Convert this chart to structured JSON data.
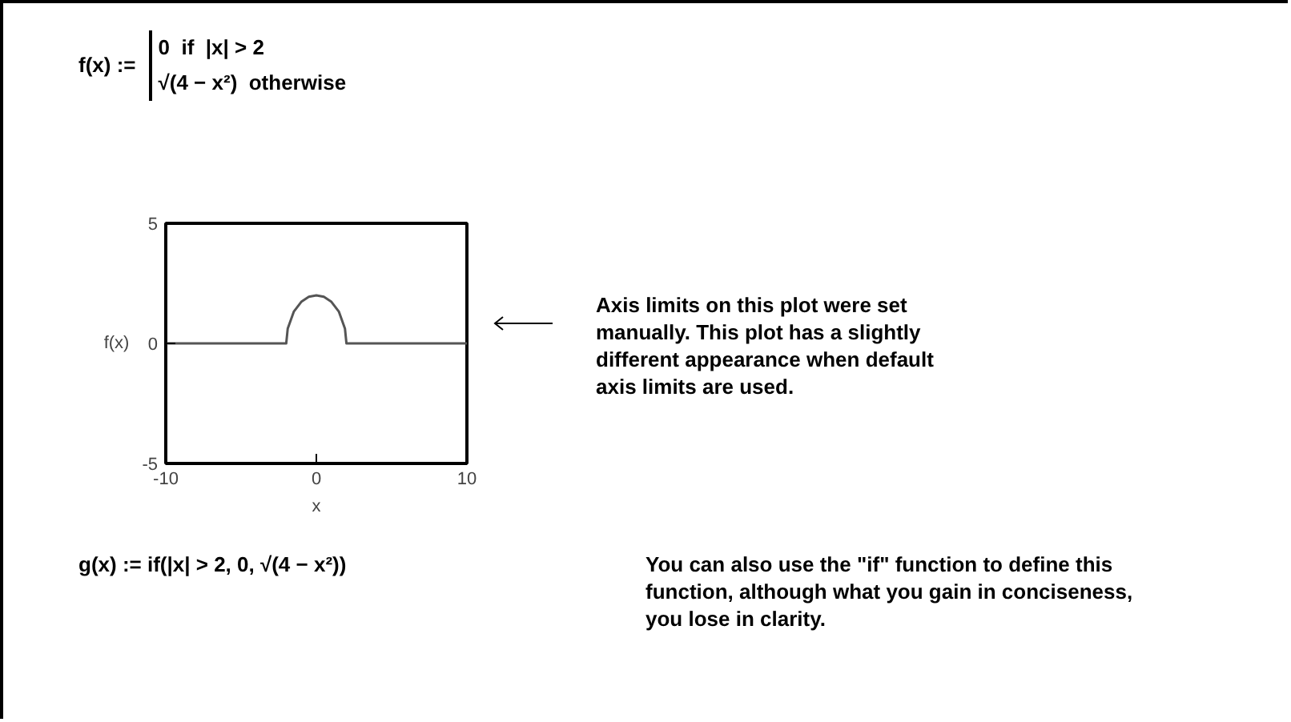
{
  "chart_data": {
    "type": "line",
    "xlabel": "x",
    "ylabel": "f(x)",
    "x": [
      -10,
      -2,
      -1.9,
      -1.5,
      -1,
      -0.5,
      0,
      0.5,
      1,
      1.5,
      1.9,
      2,
      10
    ],
    "series": [
      {
        "color": "#555555",
        "values": [
          0,
          0,
          0.62,
          1.32,
          1.73,
          1.94,
          2,
          1.94,
          1.73,
          1.32,
          0.62,
          0,
          0
        ]
      }
    ],
    "xlim": [
      -10,
      10
    ],
    "ylim": [
      -5,
      5
    ],
    "xticks": [
      -10,
      0,
      10
    ],
    "yticks": [
      -5,
      0,
      5
    ],
    "grid": false,
    "marker": "none",
    "line_style": "solid",
    "annotations": [
      "f(x) :=",
      "0  if  |x| > 2",
      "√(4 − x²)  otherwise",
      "Axis limits on this plot were set manually. This plot has a slightly different appearance when default axis limits are used.",
      "g(x) := if(|x| > 2, 0, √(4 − x²))",
      "You can also use the \"if\" function to define this function, although what you gain in conciseness, you lose in clarity."
    ]
  }
}
